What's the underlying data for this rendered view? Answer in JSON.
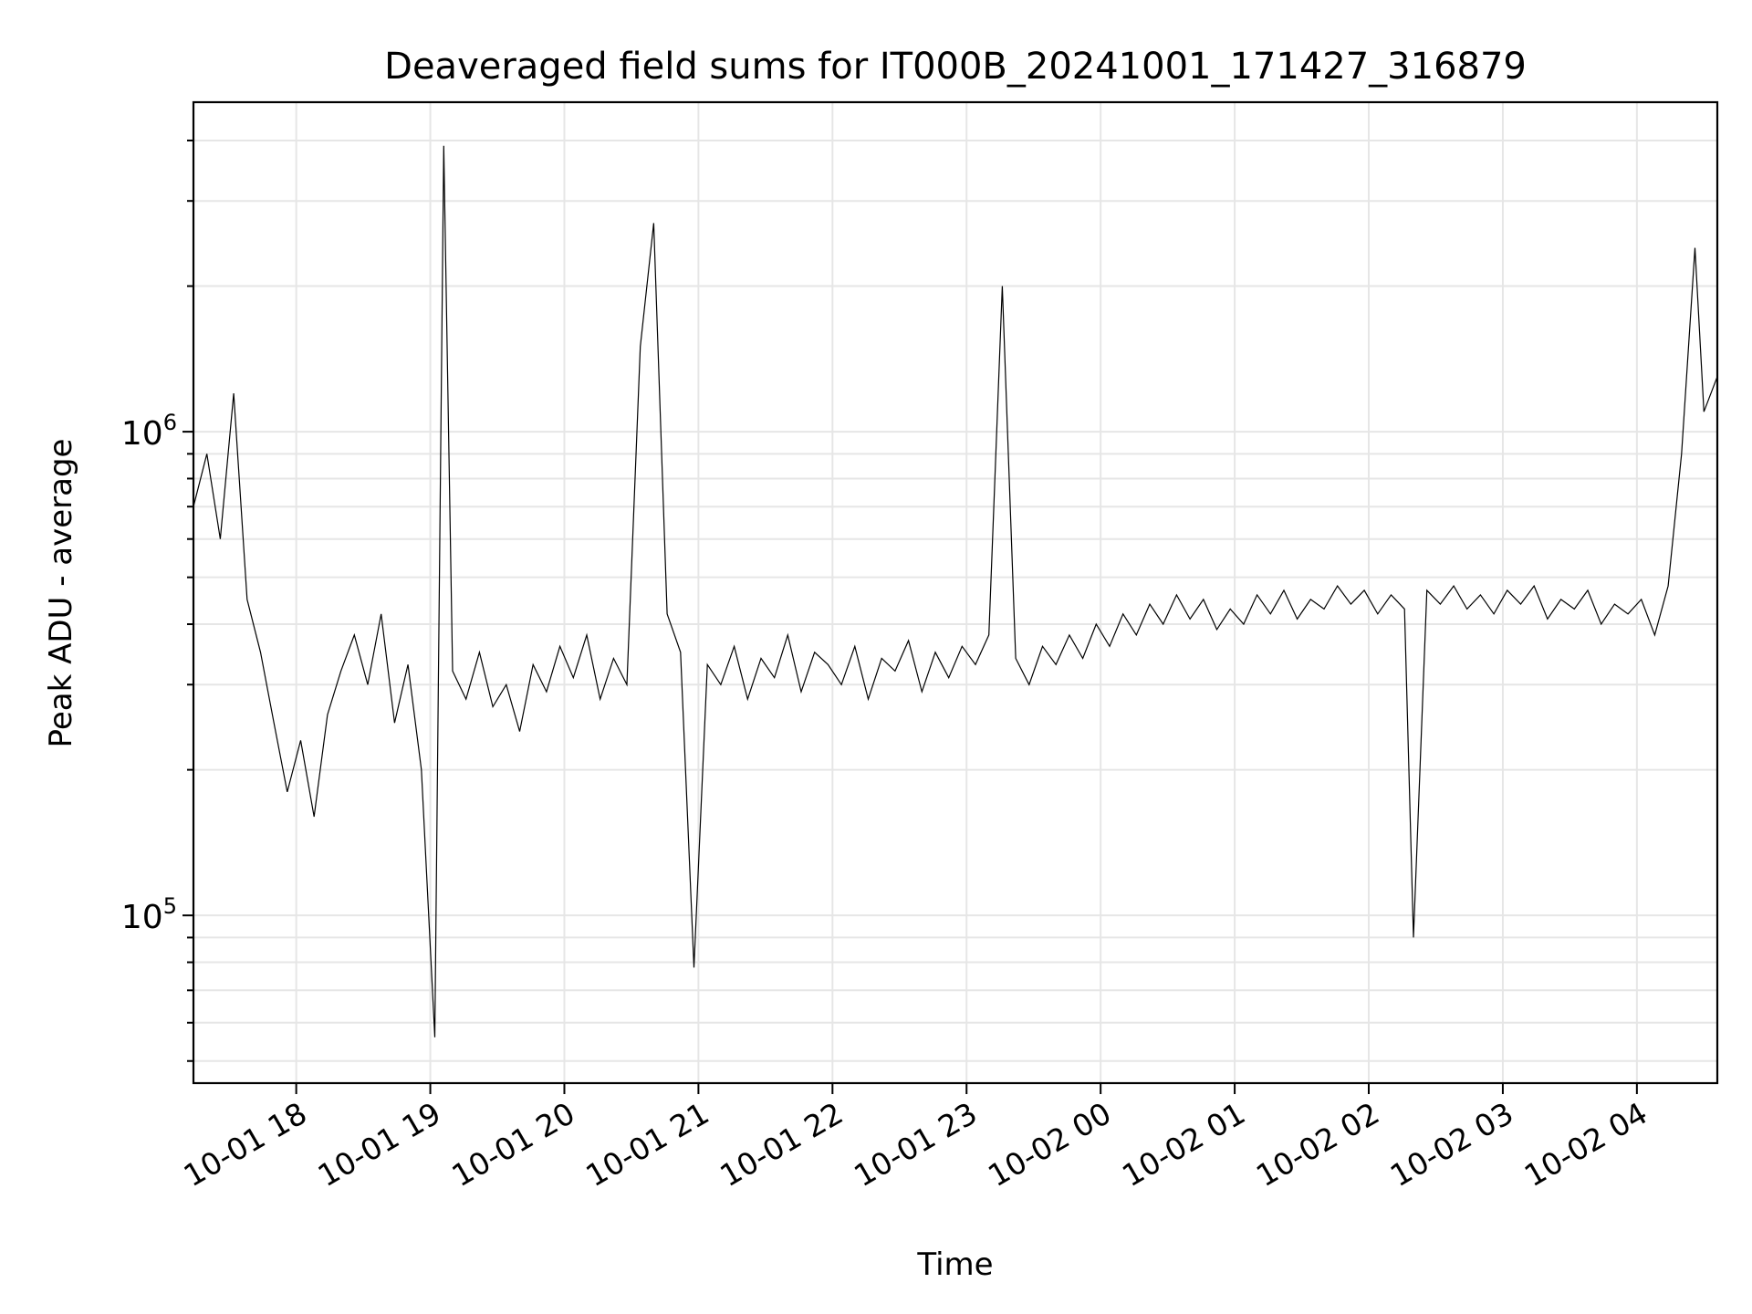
{
  "chart_data": {
    "type": "line",
    "title": "Deaveraged field sums for IT000B_20241001_171427_316879",
    "xlabel": "Time",
    "ylabel": "Peak ADU - average",
    "yscale": "log",
    "xlim": [
      "2024-10-01 17:14",
      "2024-10-02 04:36"
    ],
    "ylim": [
      45000,
      4800000
    ],
    "x_ticks": [
      "10-01 18",
      "10-01 19",
      "10-01 20",
      "10-01 21",
      "10-01 22",
      "10-01 23",
      "10-02 00",
      "10-02 01",
      "10-02 02",
      "10-02 03",
      "10-02 04"
    ],
    "x_tick_times": [
      "2024-10-01 18:00",
      "2024-10-01 19:00",
      "2024-10-01 20:00",
      "2024-10-01 21:00",
      "2024-10-01 22:00",
      "2024-10-01 23:00",
      "2024-10-02 00:00",
      "2024-10-02 01:00",
      "2024-10-02 02:00",
      "2024-10-02 03:00",
      "2024-10-02 04:00"
    ],
    "y_ticks": [
      {
        "base": "10",
        "exp": "5",
        "value": 100000
      },
      {
        "base": "10",
        "exp": "6",
        "value": 1000000
      }
    ],
    "grid": true,
    "legend": "none",
    "series": [
      {
        "color": "#000000",
        "points": [
          [
            "2024-10-01 17:14",
            700000
          ],
          [
            "2024-10-01 17:20",
            900000
          ],
          [
            "2024-10-01 17:26",
            600000
          ],
          [
            "2024-10-01 17:32",
            1200000
          ],
          [
            "2024-10-01 17:38",
            450000
          ],
          [
            "2024-10-01 17:44",
            350000
          ],
          [
            "2024-10-01 17:50",
            250000
          ],
          [
            "2024-10-01 17:56",
            180000
          ],
          [
            "2024-10-01 18:02",
            230000
          ],
          [
            "2024-10-01 18:08",
            160000
          ],
          [
            "2024-10-01 18:14",
            260000
          ],
          [
            "2024-10-01 18:20",
            320000
          ],
          [
            "2024-10-01 18:26",
            380000
          ],
          [
            "2024-10-01 18:32",
            300000
          ],
          [
            "2024-10-01 18:38",
            420000
          ],
          [
            "2024-10-01 18:44",
            250000
          ],
          [
            "2024-10-01 18:50",
            330000
          ],
          [
            "2024-10-01 18:56",
            200000
          ],
          [
            "2024-10-01 19:02",
            56000
          ],
          [
            "2024-10-01 19:06",
            3900000
          ],
          [
            "2024-10-01 19:10",
            320000
          ],
          [
            "2024-10-01 19:16",
            280000
          ],
          [
            "2024-10-01 19:22",
            350000
          ],
          [
            "2024-10-01 19:28",
            270000
          ],
          [
            "2024-10-01 19:34",
            300000
          ],
          [
            "2024-10-01 19:40",
            240000
          ],
          [
            "2024-10-01 19:46",
            330000
          ],
          [
            "2024-10-01 19:52",
            290000
          ],
          [
            "2024-10-01 19:58",
            360000
          ],
          [
            "2024-10-01 20:04",
            310000
          ],
          [
            "2024-10-01 20:10",
            380000
          ],
          [
            "2024-10-01 20:16",
            280000
          ],
          [
            "2024-10-01 20:22",
            340000
          ],
          [
            "2024-10-01 20:28",
            300000
          ],
          [
            "2024-10-01 20:34",
            1500000
          ],
          [
            "2024-10-01 20:40",
            2700000
          ],
          [
            "2024-10-01 20:46",
            420000
          ],
          [
            "2024-10-01 20:52",
            350000
          ],
          [
            "2024-10-01 20:58",
            78000
          ],
          [
            "2024-10-01 21:04",
            330000
          ],
          [
            "2024-10-01 21:10",
            300000
          ],
          [
            "2024-10-01 21:16",
            360000
          ],
          [
            "2024-10-01 21:22",
            280000
          ],
          [
            "2024-10-01 21:28",
            340000
          ],
          [
            "2024-10-01 21:34",
            310000
          ],
          [
            "2024-10-01 21:40",
            380000
          ],
          [
            "2024-10-01 21:46",
            290000
          ],
          [
            "2024-10-01 21:52",
            350000
          ],
          [
            "2024-10-01 21:58",
            330000
          ],
          [
            "2024-10-01 22:04",
            300000
          ],
          [
            "2024-10-01 22:10",
            360000
          ],
          [
            "2024-10-01 22:16",
            280000
          ],
          [
            "2024-10-01 22:22",
            340000
          ],
          [
            "2024-10-01 22:28",
            320000
          ],
          [
            "2024-10-01 22:34",
            370000
          ],
          [
            "2024-10-01 22:40",
            290000
          ],
          [
            "2024-10-01 22:46",
            350000
          ],
          [
            "2024-10-01 22:52",
            310000
          ],
          [
            "2024-10-01 22:58",
            360000
          ],
          [
            "2024-10-01 23:04",
            330000
          ],
          [
            "2024-10-01 23:10",
            380000
          ],
          [
            "2024-10-01 23:16",
            2000000
          ],
          [
            "2024-10-01 23:22",
            340000
          ],
          [
            "2024-10-01 23:28",
            300000
          ],
          [
            "2024-10-01 23:34",
            360000
          ],
          [
            "2024-10-01 23:40",
            330000
          ],
          [
            "2024-10-01 23:46",
            380000
          ],
          [
            "2024-10-01 23:52",
            340000
          ],
          [
            "2024-10-01 23:58",
            400000
          ],
          [
            "2024-10-02 00:04",
            360000
          ],
          [
            "2024-10-02 00:10",
            420000
          ],
          [
            "2024-10-02 00:16",
            380000
          ],
          [
            "2024-10-02 00:22",
            440000
          ],
          [
            "2024-10-02 00:28",
            400000
          ],
          [
            "2024-10-02 00:34",
            460000
          ],
          [
            "2024-10-02 00:40",
            410000
          ],
          [
            "2024-10-02 00:46",
            450000
          ],
          [
            "2024-10-02 00:52",
            390000
          ],
          [
            "2024-10-02 00:58",
            430000
          ],
          [
            "2024-10-02 01:04",
            400000
          ],
          [
            "2024-10-02 01:10",
            460000
          ],
          [
            "2024-10-02 01:16",
            420000
          ],
          [
            "2024-10-02 01:22",
            470000
          ],
          [
            "2024-10-02 01:28",
            410000
          ],
          [
            "2024-10-02 01:34",
            450000
          ],
          [
            "2024-10-02 01:40",
            430000
          ],
          [
            "2024-10-02 01:46",
            480000
          ],
          [
            "2024-10-02 01:52",
            440000
          ],
          [
            "2024-10-02 01:58",
            470000
          ],
          [
            "2024-10-02 02:04",
            420000
          ],
          [
            "2024-10-02 02:10",
            460000
          ],
          [
            "2024-10-02 02:16",
            430000
          ],
          [
            "2024-10-02 02:20",
            90000
          ],
          [
            "2024-10-02 02:26",
            470000
          ],
          [
            "2024-10-02 02:32",
            440000
          ],
          [
            "2024-10-02 02:38",
            480000
          ],
          [
            "2024-10-02 02:44",
            430000
          ],
          [
            "2024-10-02 02:50",
            460000
          ],
          [
            "2024-10-02 02:56",
            420000
          ],
          [
            "2024-10-02 03:02",
            470000
          ],
          [
            "2024-10-02 03:08",
            440000
          ],
          [
            "2024-10-02 03:14",
            480000
          ],
          [
            "2024-10-02 03:20",
            410000
          ],
          [
            "2024-10-02 03:26",
            450000
          ],
          [
            "2024-10-02 03:32",
            430000
          ],
          [
            "2024-10-02 03:38",
            470000
          ],
          [
            "2024-10-02 03:44",
            400000
          ],
          [
            "2024-10-02 03:50",
            440000
          ],
          [
            "2024-10-02 03:56",
            420000
          ],
          [
            "2024-10-02 04:02",
            450000
          ],
          [
            "2024-10-02 04:08",
            380000
          ],
          [
            "2024-10-02 04:14",
            480000
          ],
          [
            "2024-10-02 04:20",
            900000
          ],
          [
            "2024-10-02 04:26",
            2400000
          ],
          [
            "2024-10-02 04:30",
            1100000
          ],
          [
            "2024-10-02 04:36",
            1300000
          ]
        ]
      }
    ]
  }
}
